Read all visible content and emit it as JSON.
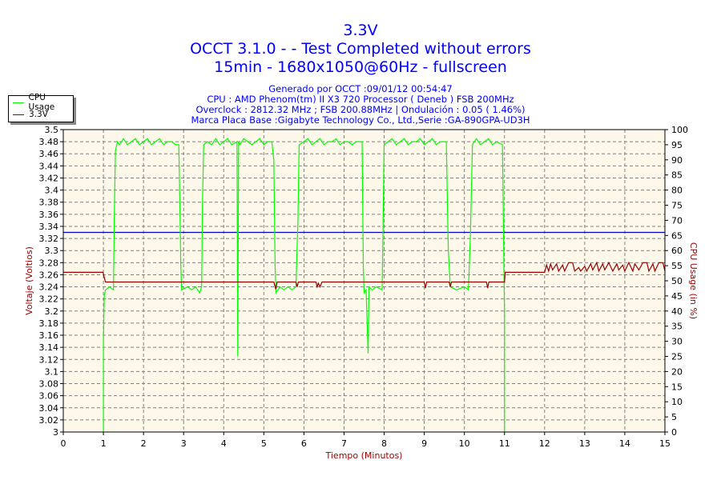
{
  "header": {
    "title": "3.3V",
    "subtitle1": "OCCT 3.1.0 -  - Test Completed without errors",
    "subtitle2": "15min - 1680x1050@60Hz - fullscreen",
    "info1": "Generado por OCCT :09/01/12 00:54:47",
    "info2": "CPU : AMD Phenom(tm) II X3 720 Processor ( Deneb ) FSB 200MHz",
    "info3": "Overclock : 2812.32 MHz ; FSB 200.88MHz | Ondulación : 0.05 ( 1.46%)",
    "info4": "Marca Placa Base :Gigabyte Technology Co., Ltd.,Serie :GA-890GPA-UD3H"
  },
  "chart_data": {
    "type": "line",
    "xlabel": "Tiempo (Minutos)",
    "ylabel": "Voltaje (Voltios)",
    "y2label": "CPU Usage (in %)",
    "xlim": [
      0,
      15
    ],
    "ylim": [
      3.0,
      3.5
    ],
    "y2lim": [
      0,
      100
    ],
    "xticks": [
      "0",
      "1",
      "2",
      "3",
      "4",
      "5",
      "6",
      "7",
      "8",
      "9",
      "10",
      "11",
      "12",
      "13",
      "14",
      "15"
    ],
    "yticks": [
      "3",
      "3.02",
      "3.04",
      "3.06",
      "3.08",
      "3.1",
      "3.12",
      "3.14",
      "3.16",
      "3.18",
      "3.2",
      "3.22",
      "3.24",
      "3.26",
      "3.28",
      "3.3",
      "3.32",
      "3.34",
      "3.36",
      "3.38",
      "3.4",
      "3.42",
      "3.44",
      "3.46",
      "3.48",
      "3.5"
    ],
    "y2ticks": [
      "0",
      "5",
      "10",
      "15",
      "20",
      "25",
      "30",
      "35",
      "40",
      "45",
      "50",
      "55",
      "60",
      "65",
      "70",
      "75",
      "80",
      "85",
      "90",
      "95",
      "100"
    ],
    "grid": true,
    "legend_position": "top-left",
    "reference_line": {
      "y": 3.33,
      "color": "#0000c0"
    },
    "series": [
      {
        "name": "CPU Usage",
        "axis": "right",
        "color": "#00ff00",
        "points": [
          [
            1.0,
            0
          ],
          [
            1.0,
            30
          ],
          [
            1.02,
            45
          ],
          [
            1.05,
            47
          ],
          [
            1.15,
            48
          ],
          [
            1.25,
            47
          ],
          [
            1.27,
            70
          ],
          [
            1.3,
            93
          ],
          [
            1.35,
            96
          ],
          [
            1.4,
            95
          ],
          [
            1.5,
            97
          ],
          [
            1.6,
            95
          ],
          [
            1.7,
            96
          ],
          [
            1.8,
            97
          ],
          [
            1.9,
            95
          ],
          [
            2.0,
            96
          ],
          [
            2.1,
            97
          ],
          [
            2.2,
            95
          ],
          [
            2.3,
            96
          ],
          [
            2.4,
            97
          ],
          [
            2.5,
            95
          ],
          [
            2.6,
            96
          ],
          [
            2.7,
            96
          ],
          [
            2.8,
            95
          ],
          [
            2.88,
            95
          ],
          [
            2.9,
            80
          ],
          [
            2.93,
            55
          ],
          [
            2.95,
            47
          ],
          [
            3.1,
            48
          ],
          [
            3.2,
            47
          ],
          [
            3.3,
            48
          ],
          [
            3.4,
            46
          ],
          [
            3.45,
            48
          ],
          [
            3.47,
            75
          ],
          [
            3.5,
            95
          ],
          [
            3.6,
            96
          ],
          [
            3.7,
            95
          ],
          [
            3.8,
            97
          ],
          [
            3.9,
            95
          ],
          [
            4.0,
            96
          ],
          [
            4.1,
            97
          ],
          [
            4.2,
            95
          ],
          [
            4.33,
            96
          ],
          [
            4.35,
            25
          ],
          [
            4.37,
            96
          ],
          [
            4.4,
            95
          ],
          [
            4.5,
            97
          ],
          [
            4.6,
            96
          ],
          [
            4.7,
            95
          ],
          [
            4.8,
            96
          ],
          [
            4.9,
            97
          ],
          [
            5.0,
            95
          ],
          [
            5.1,
            96
          ],
          [
            5.2,
            96
          ],
          [
            5.25,
            90
          ],
          [
            5.28,
            55
          ],
          [
            5.3,
            46
          ],
          [
            5.4,
            48
          ],
          [
            5.5,
            47
          ],
          [
            5.6,
            48
          ],
          [
            5.7,
            47
          ],
          [
            5.8,
            48
          ],
          [
            5.85,
            70
          ],
          [
            5.88,
            95
          ],
          [
            6.0,
            96
          ],
          [
            6.1,
            97
          ],
          [
            6.2,
            95
          ],
          [
            6.3,
            96
          ],
          [
            6.4,
            97
          ],
          [
            6.5,
            95
          ],
          [
            6.6,
            96
          ],
          [
            6.7,
            96
          ],
          [
            6.8,
            97
          ],
          [
            6.9,
            95
          ],
          [
            7.0,
            96
          ],
          [
            7.1,
            96
          ],
          [
            7.2,
            95
          ],
          [
            7.3,
            96
          ],
          [
            7.45,
            96
          ],
          [
            7.48,
            55
          ],
          [
            7.5,
            46
          ],
          [
            7.55,
            47
          ],
          [
            7.6,
            26
          ],
          [
            7.62,
            48
          ],
          [
            7.7,
            47
          ],
          [
            7.8,
            48
          ],
          [
            7.95,
            47
          ],
          [
            7.98,
            75
          ],
          [
            8.0,
            95
          ],
          [
            8.1,
            96
          ],
          [
            8.2,
            97
          ],
          [
            8.3,
            95
          ],
          [
            8.4,
            96
          ],
          [
            8.5,
            97
          ],
          [
            8.6,
            95
          ],
          [
            8.7,
            96
          ],
          [
            8.8,
            96
          ],
          [
            8.9,
            97
          ],
          [
            9.0,
            95
          ],
          [
            9.1,
            96
          ],
          [
            9.2,
            97
          ],
          [
            9.3,
            95
          ],
          [
            9.4,
            96
          ],
          [
            9.55,
            96
          ],
          [
            9.6,
            60
          ],
          [
            9.65,
            48
          ],
          [
            9.8,
            47
          ],
          [
            10.0,
            48
          ],
          [
            10.1,
            47
          ],
          [
            10.15,
            65
          ],
          [
            10.2,
            95
          ],
          [
            10.3,
            97
          ],
          [
            10.4,
            95
          ],
          [
            10.5,
            96
          ],
          [
            10.6,
            97
          ],
          [
            10.7,
            95
          ],
          [
            10.8,
            96
          ],
          [
            10.95,
            95
          ],
          [
            11.0,
            40
          ],
          [
            11.0,
            0
          ]
        ]
      },
      {
        "name": "3.3V",
        "axis": "left",
        "color": "#990000",
        "points": [
          [
            0,
            3.264
          ],
          [
            0.99,
            3.264
          ],
          [
            1.02,
            3.256
          ],
          [
            1.05,
            3.248
          ],
          [
            5.25,
            3.248
          ],
          [
            5.28,
            3.24
          ],
          [
            5.3,
            3.236
          ],
          [
            5.33,
            3.248
          ],
          [
            5.8,
            3.248
          ],
          [
            5.83,
            3.24
          ],
          [
            5.86,
            3.248
          ],
          [
            6.3,
            3.248
          ],
          [
            6.33,
            3.24
          ],
          [
            6.36,
            3.246
          ],
          [
            6.4,
            3.24
          ],
          [
            6.45,
            3.248
          ],
          [
            9.0,
            3.248
          ],
          [
            9.03,
            3.238
          ],
          [
            9.06,
            3.248
          ],
          [
            9.62,
            3.248
          ],
          [
            9.65,
            3.24
          ],
          [
            9.68,
            3.248
          ],
          [
            10.55,
            3.248
          ],
          [
            10.58,
            3.238
          ],
          [
            10.61,
            3.248
          ],
          [
            11.0,
            3.248
          ],
          [
            11.02,
            3.264
          ],
          [
            12.0,
            3.264
          ],
          [
            12.05,
            3.276
          ],
          [
            12.1,
            3.266
          ],
          [
            12.15,
            3.278
          ],
          [
            12.2,
            3.268
          ],
          [
            12.3,
            3.278
          ],
          [
            12.35,
            3.266
          ],
          [
            12.45,
            3.276
          ],
          [
            12.5,
            3.266
          ],
          [
            12.6,
            3.28
          ],
          [
            12.7,
            3.28
          ],
          [
            12.75,
            3.266
          ],
          [
            12.85,
            3.272
          ],
          [
            12.9,
            3.266
          ],
          [
            13.0,
            3.274
          ],
          [
            13.05,
            3.266
          ],
          [
            13.15,
            3.278
          ],
          [
            13.2,
            3.268
          ],
          [
            13.3,
            3.28
          ],
          [
            13.35,
            3.266
          ],
          [
            13.45,
            3.278
          ],
          [
            13.5,
            3.268
          ],
          [
            13.6,
            3.28
          ],
          [
            13.7,
            3.266
          ],
          [
            13.8,
            3.278
          ],
          [
            13.85,
            3.268
          ],
          [
            13.95,
            3.276
          ],
          [
            14.0,
            3.266
          ],
          [
            14.1,
            3.28
          ],
          [
            14.2,
            3.266
          ],
          [
            14.25,
            3.278
          ],
          [
            14.35,
            3.268
          ],
          [
            14.45,
            3.28
          ],
          [
            14.55,
            3.28
          ],
          [
            14.6,
            3.266
          ],
          [
            14.7,
            3.278
          ],
          [
            14.75,
            3.266
          ],
          [
            14.85,
            3.28
          ],
          [
            14.95,
            3.28
          ],
          [
            15.0,
            3.266
          ]
        ]
      }
    ]
  }
}
